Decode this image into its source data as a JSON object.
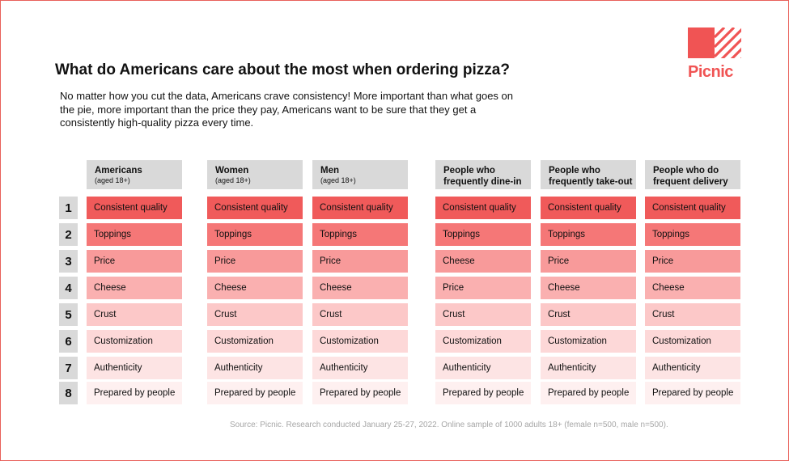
{
  "title": "What do Americans care about the most when ordering pizza?",
  "subtitle": "No matter how you cut the data, Americans crave consistency! More important than what goes on the pie, more important than the price they pay, Americans want to be sure that they get a consistently high-quality pizza every time.",
  "logo": {
    "text": "Picnic"
  },
  "source": "Source: Picnic.    Research conducted January 25-27, 2022. Online sample of 1000 adults 18+ (female n=500, male n=500).",
  "colors": {
    "rank_fill": [
      "#f05a5a",
      "#f57777",
      "#f89a9a",
      "#fab0b0",
      "#fcc8c8",
      "#fdd8d8",
      "#fde4e4",
      "#fef0f0"
    ],
    "header_bg": "#d9d9d9",
    "brand": "#f05454",
    "source_text": "#a6a6a6"
  },
  "chart_data": {
    "type": "table",
    "ranks": [
      "1",
      "2",
      "3",
      "4",
      "5",
      "6",
      "7",
      "8"
    ],
    "columns": [
      {
        "name": "Americans",
        "sub": "(aged 18+)",
        "items": [
          "Consistent quality",
          "Toppings",
          "Price",
          "Cheese",
          "Crust",
          "Customization",
          "Authenticity",
          "Prepared by people"
        ]
      },
      {
        "name": "Women",
        "sub": "(aged 18+)",
        "items": [
          "Consistent quality",
          "Toppings",
          "Price",
          "Cheese",
          "Crust",
          "Customization",
          "Authenticity",
          "Prepared by people"
        ]
      },
      {
        "name": "Men",
        "sub": "(aged 18+)",
        "items": [
          "Consistent quality",
          "Toppings",
          "Price",
          "Cheese",
          "Crust",
          "Customization",
          "Authenticity",
          "Prepared by people"
        ]
      },
      {
        "name": "People who frequently dine-in",
        "sub": "",
        "items": [
          "Consistent quality",
          "Toppings",
          "Cheese",
          "Price",
          "Crust",
          "Customization",
          "Authenticity",
          "Prepared by people"
        ]
      },
      {
        "name": "People who frequently take-out",
        "sub": "",
        "items": [
          "Consistent quality",
          "Toppings",
          "Price",
          "Cheese",
          "Crust",
          "Customization",
          "Authenticity",
          "Prepared by people"
        ]
      },
      {
        "name": "People who do frequent delivery",
        "sub": "",
        "items": [
          "Consistent quality",
          "Toppings",
          "Price",
          "Cheese",
          "Crust",
          "Customization",
          "Authenticity",
          "Prepared by people"
        ]
      }
    ]
  }
}
